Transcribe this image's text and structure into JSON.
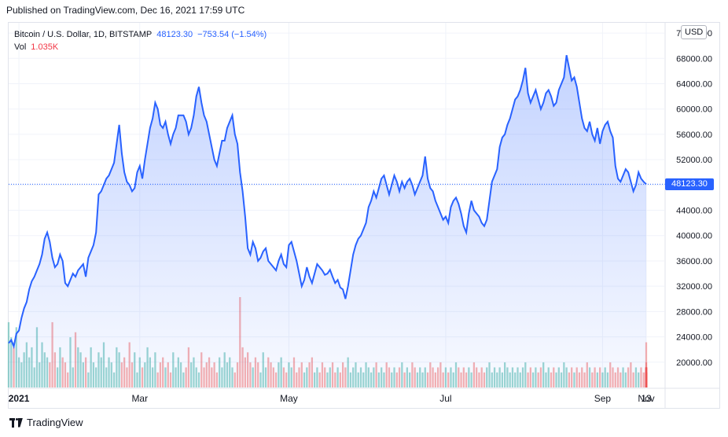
{
  "published": "Published on TradingView.com, Dec 16, 2021 17:59 UTC",
  "legend": {
    "symbol": "Bitcoin / U.S. Dollar, 1D, BITSTAMP",
    "price": "48123.30",
    "change": "−753.54 (−1.54%)",
    "vol_label": "Vol",
    "vol_value": "1.035K"
  },
  "currency": "USD",
  "last_price_tag": "48123.30",
  "footer": {
    "brand": "TradingView"
  },
  "colors": {
    "line": "#2962ff",
    "vol_up": "#26a69a",
    "vol_down": "#ef5350",
    "grid": "#f0f3fa"
  },
  "chart_data": {
    "type": "area",
    "y_ticks": [
      "72000.00",
      "68000.00",
      "64000.00",
      "60000.00",
      "56000.00",
      "52000.00",
      "48000.00",
      "44000.00",
      "40000.00",
      "36000.00",
      "32000.00",
      "28000.00",
      "24000.00",
      "20000.00"
    ],
    "x_ticks": [
      "2021",
      "Mar",
      "May",
      "Jul",
      "Sep",
      "Nov",
      "13"
    ],
    "ylim": [
      16000,
      73500
    ],
    "series": [
      {
        "values": [
          23000,
          23500,
          22500,
          24500,
          25000,
          27000,
          28500,
          29500,
          31500,
          32800,
          33500,
          34500,
          35500,
          37000,
          39500,
          40500,
          39000,
          36500,
          35000,
          35500,
          37000,
          36000,
          32500,
          32000,
          33000,
          34000,
          33500,
          34500,
          35000,
          35500,
          33500,
          36500,
          37500,
          38500,
          40500,
          46500,
          47000,
          48000,
          49000,
          49500,
          50500,
          51500,
          54500,
          57500,
          53000,
          50000,
          48500,
          48000,
          47000,
          47500,
          50000,
          51000,
          49000,
          52000,
          54500,
          57000,
          58500,
          61000,
          60000,
          57500,
          57000,
          58000,
          56000,
          54500,
          56000,
          57000,
          59000,
          59000,
          59000,
          58000,
          56000,
          57000,
          59000,
          62000,
          63500,
          61000,
          59000,
          58000,
          56000,
          54000,
          52000,
          51000,
          53000,
          55000,
          55000,
          57000,
          58000,
          59000,
          56000,
          54500,
          50000,
          47000,
          43000,
          38000,
          37000,
          39000,
          38000,
          36000,
          36500,
          37500,
          38000,
          36000,
          35500,
          35000,
          34500,
          36000,
          37000,
          35500,
          35000,
          38500,
          39000,
          37500,
          36000,
          34000,
          32000,
          33000,
          35000,
          33500,
          32500,
          34000,
          35500,
          35000,
          34500,
          33800,
          34000,
          34600,
          33500,
          32500,
          33000,
          31800,
          31500,
          30000,
          32000,
          34500,
          37000,
          38500,
          39500,
          40000,
          41000,
          42000,
          44500,
          45500,
          47000,
          46000,
          47500,
          49000,
          49500,
          48000,
          46500,
          48000,
          49500,
          48500,
          47000,
          48500,
          47500,
          48500,
          49000,
          48000,
          46500,
          47500,
          48500,
          49500,
          52500,
          49000,
          47500,
          47000,
          45500,
          44500,
          43500,
          42500,
          43000,
          42000,
          44500,
          45500,
          46000,
          45000,
          43500,
          41500,
          40500,
          43500,
          45500,
          44000,
          43500,
          43000,
          42000,
          41500,
          42500,
          45500,
          48500,
          49500,
          50500,
          54000,
          55500,
          56000,
          57500,
          58500,
          60000,
          61500,
          62000,
          63000,
          64500,
          66500,
          62500,
          61000,
          62000,
          63000,
          61500,
          60000,
          61000,
          62500,
          63000,
          62000,
          60500,
          61000,
          63000,
          64000,
          65000,
          68500,
          66500,
          64500,
          65000,
          63500,
          61000,
          58500,
          57000,
          56500,
          58000,
          56000,
          55000,
          57000,
          54500,
          56500,
          57500,
          58000,
          56500,
          55500,
          51000,
          49000,
          48500,
          49500,
          50500,
          50000,
          48500,
          47000,
          48000,
          50000,
          49000,
          48500,
          48123.3
        ]
      }
    ],
    "volume": {
      "values": [
        13,
        10,
        8,
        12,
        6,
        5,
        7,
        9,
        6,
        8,
        4,
        12,
        5,
        9,
        7,
        6,
        5,
        13,
        7,
        4,
        8,
        6,
        5,
        3,
        10,
        4,
        11,
        8,
        7,
        5,
        6,
        3,
        8,
        5,
        4,
        7,
        6,
        9,
        4,
        6,
        5,
        3,
        8,
        7,
        5,
        6,
        4,
        9,
        5,
        7,
        3,
        6,
        4,
        5,
        8,
        6,
        4,
        7,
        3,
        5,
        6,
        4,
        5,
        3,
        7,
        4,
        6,
        5,
        3,
        4,
        8,
        5,
        6,
        4,
        3,
        7,
        4,
        5,
        6,
        4,
        5,
        3,
        6,
        4,
        7,
        5,
        6,
        4,
        3,
        5,
        18,
        8,
        6,
        7,
        5,
        4,
        6,
        5,
        3,
        7,
        4,
        6,
        5,
        4,
        3,
        5,
        6,
        4,
        3,
        5,
        4,
        6,
        3,
        4,
        5,
        3,
        4,
        5,
        6,
        3,
        4,
        3,
        5,
        4,
        3,
        4,
        5,
        3,
        4,
        3,
        5,
        4,
        6,
        3,
        4,
        5,
        3,
        4,
        3,
        5,
        4,
        3,
        4,
        5,
        3,
        4,
        3,
        5,
        4,
        3,
        4,
        3,
        4,
        5,
        3,
        4,
        3,
        5,
        4,
        3,
        4,
        3,
        4,
        3,
        5,
        4,
        3,
        4,
        5,
        3,
        4,
        3,
        4,
        3,
        5,
        4,
        3,
        4,
        3,
        4,
        3,
        5,
        4,
        3,
        4,
        3,
        4,
        5,
        3,
        4,
        3,
        4,
        3,
        5,
        4,
        3,
        4,
        3,
        4,
        3,
        4,
        5,
        3,
        4,
        3,
        4,
        3,
        4,
        5,
        3,
        4,
        3,
        4,
        3,
        4,
        3,
        5,
        4,
        3,
        4,
        3,
        4,
        3,
        4,
        3,
        5,
        4,
        3,
        4,
        3,
        4,
        3,
        4,
        3,
        5,
        4,
        3,
        4,
        3,
        4,
        3,
        4,
        5,
        3,
        4,
        3,
        4,
        3,
        4,
        3,
        4,
        5,
        3,
        4,
        3,
        4,
        3,
        4,
        3,
        4,
        9,
        3,
        4,
        3,
        4,
        3,
        4,
        3,
        4,
        3
      ]
    }
  }
}
